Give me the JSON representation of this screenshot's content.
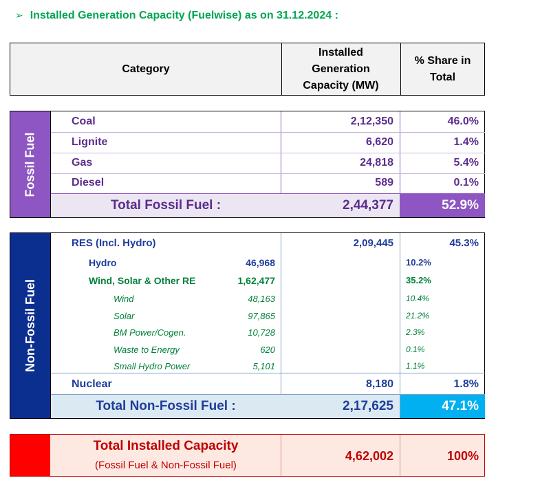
{
  "heading": {
    "arrow": "➢",
    "text": "Installed Generation Capacity (Fuelwise) as on 31.12.2024 :"
  },
  "header": {
    "category": "Category",
    "capacity": "Installed Generation Capacity (MW)",
    "share": "% Share in Total"
  },
  "fossil": {
    "side_label": "Fossil Fuel",
    "rows": [
      {
        "name": "Coal",
        "capacity": "2,12,350",
        "share": "46.0%"
      },
      {
        "name": "Lignite",
        "capacity": "6,620",
        "share": "1.4%"
      },
      {
        "name": "Gas",
        "capacity": "24,818",
        "share": "5.4%"
      },
      {
        "name": "Diesel",
        "capacity": "589",
        "share": "0.1%"
      }
    ],
    "total": {
      "label": "Total Fossil Fuel :",
      "capacity": "2,44,377",
      "share": "52.9%"
    }
  },
  "nonfossil": {
    "side_label": "Non-Fossil Fuel",
    "res": {
      "name": "RES (Incl. Hydro)",
      "capacity": "2,09,445",
      "share": "45.3%"
    },
    "hydro": {
      "name": "Hydro",
      "capacity": "46,968",
      "share": "10.2%"
    },
    "wind_solar": {
      "name": "Wind, Solar & Other RE",
      "capacity": "1,62,477",
      "share": "35.2%"
    },
    "sub_rows": [
      {
        "name": "Wind",
        "capacity": "48,163",
        "share": "10.4%"
      },
      {
        "name": "Solar",
        "capacity": "97,865",
        "share": "21.2%"
      },
      {
        "name": "BM Power/Cogen.",
        "capacity": "10,728",
        "share": "2.3%"
      },
      {
        "name": "Waste to Energy",
        "capacity": "620",
        "share": "0.1%"
      },
      {
        "name": "Small Hydro Power",
        "capacity": "5,101",
        "share": "1.1%"
      }
    ],
    "nuclear": {
      "name": "Nuclear",
      "capacity": "8,180",
      "share": "1.8%"
    },
    "total": {
      "label": "Total Non-Fossil Fuel :",
      "capacity": "2,17,625",
      "share": "47.1%"
    }
  },
  "grand_total": {
    "label": "Total Installed Capacity",
    "sublabel": "(Fossil Fuel & Non-Fossil Fuel)",
    "capacity": "4,62,002",
    "share": "100%"
  },
  "colors": {
    "fossil_purple": "#8e56c2",
    "fossil_total_bg": "#ece6f2",
    "nonfossil_blue": "#0b2f8e",
    "nonfossil_total_bg": "#dbe9f3",
    "nonfossil_share_bg": "#00b0f0",
    "grand_red": "#ff0000",
    "grand_bg": "#fde9e2",
    "heading_green": "#00a651"
  }
}
